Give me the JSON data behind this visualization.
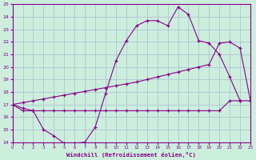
{
  "xlabel": "Windchill (Refroidissement éolien,°C)",
  "bg_color": "#cceedd",
  "line_color": "#880088",
  "grid_color": "#aabbcc",
  "xlim": [
    0,
    23
  ],
  "ylim": [
    14,
    25
  ],
  "xticks": [
    0,
    1,
    2,
    3,
    4,
    5,
    6,
    7,
    8,
    9,
    10,
    11,
    12,
    13,
    14,
    15,
    16,
    17,
    18,
    19,
    20,
    21,
    22,
    23
  ],
  "yticks": [
    14,
    15,
    16,
    17,
    18,
    19,
    20,
    21,
    22,
    23,
    24,
    25
  ],
  "line1_x": [
    0,
    1,
    2,
    3,
    4,
    5,
    6,
    7,
    8,
    9,
    10,
    11,
    12,
    13,
    14,
    15,
    16,
    17,
    18,
    19,
    20,
    21,
    22,
    23
  ],
  "line1_y": [
    17.0,
    16.5,
    16.5,
    15.0,
    14.5,
    13.9,
    13.9,
    14.0,
    15.2,
    17.9,
    20.5,
    22.1,
    23.3,
    23.7,
    23.7,
    23.3,
    24.8,
    24.2,
    22.1,
    21.9,
    21.0,
    19.2,
    17.3,
    null
  ],
  "line2_x": [
    0,
    1,
    2,
    3,
    4,
    5,
    6,
    7,
    8,
    9,
    10,
    11,
    12,
    13,
    14,
    15,
    16,
    17,
    18,
    19,
    20,
    21,
    22,
    23
  ],
  "line2_y": [
    17.0,
    17.15,
    17.3,
    17.45,
    17.6,
    17.75,
    17.9,
    18.05,
    18.2,
    18.35,
    18.5,
    18.65,
    18.8,
    19.0,
    19.2,
    19.4,
    19.6,
    19.8,
    20.0,
    20.2,
    21.9,
    22.0,
    21.5,
    17.3
  ],
  "line3_x": [
    0,
    1,
    2,
    3,
    4,
    5,
    6,
    7,
    8,
    9,
    10,
    11,
    12,
    13,
    14,
    15,
    16,
    17,
    18,
    19,
    20,
    21,
    22,
    23
  ],
  "line3_y": [
    17.0,
    16.7,
    16.5,
    16.5,
    16.5,
    16.5,
    16.5,
    16.5,
    16.5,
    16.5,
    16.5,
    16.5,
    16.5,
    16.5,
    16.5,
    16.5,
    16.5,
    16.5,
    16.5,
    16.5,
    16.5,
    17.3,
    17.3,
    17.3
  ]
}
